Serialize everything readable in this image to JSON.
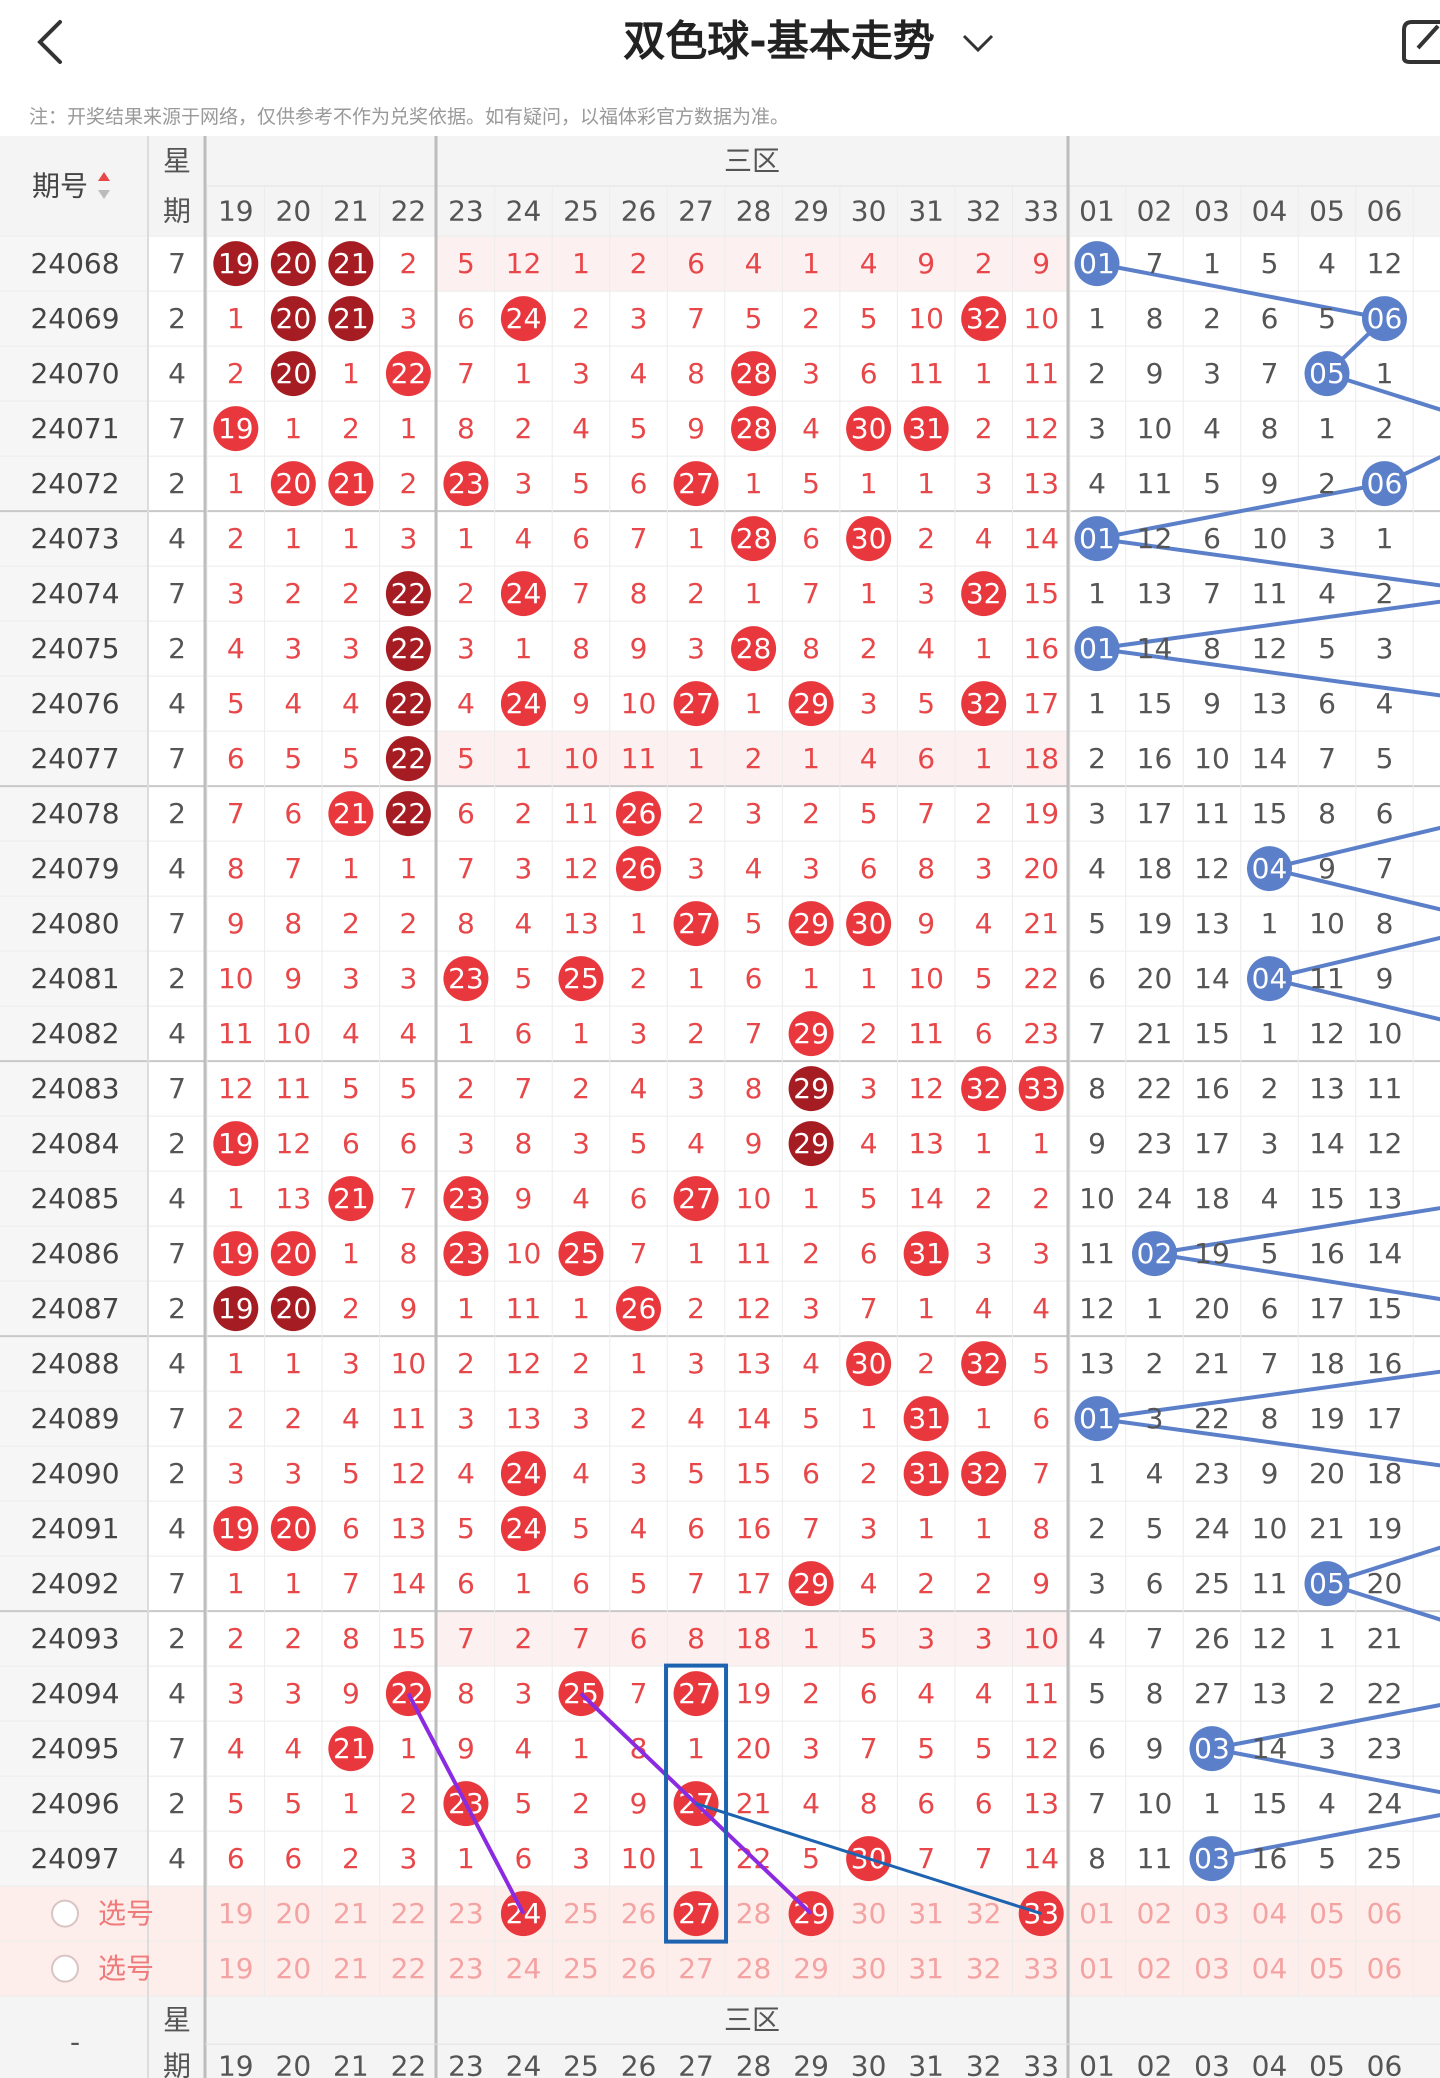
{
  "header": {
    "title": "双色球-基本走势",
    "note": "注：开奖结果来源于网络，仅供参考不作为兑奖依据。如有疑问，以福体彩官方数据为准。"
  },
  "table": {
    "issue_label": "期号",
    "week_label": [
      "星",
      "期"
    ],
    "zone_label": "三区",
    "red_columns": [
      "19",
      "20",
      "21",
      "22",
      "23",
      "24",
      "25",
      "26",
      "27",
      "28",
      "29",
      "30",
      "31",
      "32",
      "33"
    ],
    "blue_columns": [
      "01",
      "02",
      "03",
      "04",
      "05",
      "06"
    ],
    "rows": [
      {
        "issue": "24068",
        "week": "7",
        "red": [
          "19",
          "20",
          "21",
          "2",
          "5",
          "12",
          "1",
          "2",
          "6",
          "4",
          "1",
          "4",
          "9",
          "2",
          "9"
        ],
        "blue": [
          "01",
          "7",
          "1",
          "5",
          "4",
          "12"
        ],
        "dark": [
          "19",
          "20",
          "21"
        ]
      },
      {
        "issue": "24069",
        "week": "2",
        "red": [
          "1",
          "20",
          "21",
          "3",
          "6",
          "24",
          "2",
          "3",
          "7",
          "5",
          "2",
          "5",
          "10",
          "32",
          "10"
        ],
        "blue": [
          "1",
          "8",
          "2",
          "6",
          "5",
          "06"
        ],
        "dark": [
          "20",
          "21"
        ]
      },
      {
        "issue": "24070",
        "week": "4",
        "red": [
          "2",
          "20",
          "1",
          "22",
          "7",
          "1",
          "3",
          "4",
          "8",
          "28",
          "3",
          "6",
          "11",
          "1",
          "11"
        ],
        "blue": [
          "2",
          "9",
          "3",
          "7",
          "05",
          "1"
        ],
        "dark": [
          "20"
        ]
      },
      {
        "issue": "24071",
        "week": "7",
        "red": [
          "19",
          "1",
          "2",
          "1",
          "8",
          "2",
          "4",
          "5",
          "9",
          "28",
          "4",
          "30",
          "31",
          "2",
          "12"
        ],
        "blue": [
          "3",
          "10",
          "4",
          "8",
          "1",
          "2"
        ],
        "dark": []
      },
      {
        "issue": "24072",
        "week": "2",
        "red": [
          "1",
          "20",
          "21",
          "2",
          "23",
          "3",
          "5",
          "6",
          "27",
          "1",
          "5",
          "1",
          "1",
          "3",
          "13"
        ],
        "blue": [
          "4",
          "11",
          "5",
          "9",
          "2",
          "06"
        ],
        "dark": []
      },
      {
        "issue": "24073",
        "week": "4",
        "red": [
          "2",
          "1",
          "1",
          "3",
          "1",
          "4",
          "6",
          "7",
          "1",
          "28",
          "6",
          "30",
          "2",
          "4",
          "14"
        ],
        "blue": [
          "01",
          "12",
          "6",
          "10",
          "3",
          "1"
        ],
        "dark": []
      },
      {
        "issue": "24074",
        "week": "7",
        "red": [
          "3",
          "2",
          "2",
          "22",
          "2",
          "24",
          "7",
          "8",
          "2",
          "1",
          "7",
          "1",
          "3",
          "32",
          "15"
        ],
        "blue": [
          "1",
          "13",
          "7",
          "11",
          "4",
          "2"
        ],
        "dark": [
          "22"
        ]
      },
      {
        "issue": "24075",
        "week": "2",
        "red": [
          "4",
          "3",
          "3",
          "22",
          "3",
          "1",
          "8",
          "9",
          "3",
          "28",
          "8",
          "2",
          "4",
          "1",
          "16"
        ],
        "blue": [
          "01",
          "14",
          "8",
          "12",
          "5",
          "3"
        ],
        "dark": [
          "22"
        ]
      },
      {
        "issue": "24076",
        "week": "4",
        "red": [
          "5",
          "4",
          "4",
          "22",
          "4",
          "24",
          "9",
          "10",
          "27",
          "1",
          "29",
          "3",
          "5",
          "32",
          "17"
        ],
        "blue": [
          "1",
          "15",
          "9",
          "13",
          "6",
          "4"
        ],
        "dark": [
          "22"
        ]
      },
      {
        "issue": "24077",
        "week": "7",
        "red": [
          "6",
          "5",
          "5",
          "22",
          "5",
          "1",
          "10",
          "11",
          "1",
          "2",
          "1",
          "4",
          "6",
          "1",
          "18"
        ],
        "blue": [
          "2",
          "16",
          "10",
          "14",
          "7",
          "5"
        ],
        "dark": [
          "22"
        ]
      },
      {
        "issue": "24078",
        "week": "2",
        "red": [
          "7",
          "6",
          "21",
          "22",
          "6",
          "2",
          "11",
          "26",
          "2",
          "3",
          "2",
          "5",
          "7",
          "2",
          "19"
        ],
        "blue": [
          "3",
          "17",
          "11",
          "15",
          "8",
          "6"
        ],
        "dark": [
          "22"
        ]
      },
      {
        "issue": "24079",
        "week": "4",
        "red": [
          "8",
          "7",
          "1",
          "1",
          "7",
          "3",
          "12",
          "26",
          "3",
          "4",
          "3",
          "6",
          "8",
          "3",
          "20"
        ],
        "blue": [
          "4",
          "18",
          "12",
          "04",
          "9",
          "7"
        ],
        "dark": []
      },
      {
        "issue": "24080",
        "week": "7",
        "red": [
          "9",
          "8",
          "2",
          "2",
          "8",
          "4",
          "13",
          "1",
          "27",
          "5",
          "29",
          "30",
          "9",
          "4",
          "21"
        ],
        "blue": [
          "5",
          "19",
          "13",
          "1",
          "10",
          "8"
        ],
        "dark": []
      },
      {
        "issue": "24081",
        "week": "2",
        "red": [
          "10",
          "9",
          "3",
          "3",
          "23",
          "5",
          "25",
          "2",
          "1",
          "6",
          "1",
          "1",
          "10",
          "5",
          "22"
        ],
        "blue": [
          "6",
          "20",
          "14",
          "04",
          "11",
          "9"
        ],
        "dark": []
      },
      {
        "issue": "24082",
        "week": "4",
        "red": [
          "11",
          "10",
          "4",
          "4",
          "1",
          "6",
          "1",
          "3",
          "2",
          "7",
          "29",
          "2",
          "11",
          "6",
          "23"
        ],
        "blue": [
          "7",
          "21",
          "15",
          "1",
          "12",
          "10"
        ],
        "dark": []
      },
      {
        "issue": "24083",
        "week": "7",
        "red": [
          "12",
          "11",
          "5",
          "5",
          "2",
          "7",
          "2",
          "4",
          "3",
          "8",
          "29",
          "3",
          "12",
          "32",
          "33"
        ],
        "blue": [
          "8",
          "22",
          "16",
          "2",
          "13",
          "11"
        ],
        "dark": [
          "29"
        ]
      },
      {
        "issue": "24084",
        "week": "2",
        "red": [
          "19",
          "12",
          "6",
          "6",
          "3",
          "8",
          "3",
          "5",
          "4",
          "9",
          "29",
          "4",
          "13",
          "1",
          "1"
        ],
        "blue": [
          "9",
          "23",
          "17",
          "3",
          "14",
          "12"
        ],
        "dark": [
          "29"
        ]
      },
      {
        "issue": "24085",
        "week": "4",
        "red": [
          "1",
          "13",
          "21",
          "7",
          "23",
          "9",
          "4",
          "6",
          "27",
          "10",
          "1",
          "5",
          "14",
          "2",
          "2"
        ],
        "blue": [
          "10",
          "24",
          "18",
          "4",
          "15",
          "13"
        ],
        "dark": []
      },
      {
        "issue": "24086",
        "week": "7",
        "red": [
          "19",
          "20",
          "1",
          "8",
          "23",
          "10",
          "25",
          "7",
          "1",
          "11",
          "2",
          "6",
          "31",
          "3",
          "3"
        ],
        "blue": [
          "11",
          "02",
          "19",
          "5",
          "16",
          "14"
        ],
        "dark": []
      },
      {
        "issue": "24087",
        "week": "2",
        "red": [
          "19",
          "20",
          "2",
          "9",
          "1",
          "11",
          "1",
          "26",
          "2",
          "12",
          "3",
          "7",
          "1",
          "4",
          "4"
        ],
        "blue": [
          "12",
          "1",
          "20",
          "6",
          "17",
          "15"
        ],
        "dark": [
          "19",
          "20"
        ]
      },
      {
        "issue": "24088",
        "week": "4",
        "red": [
          "1",
          "1",
          "3",
          "10",
          "2",
          "12",
          "2",
          "1",
          "3",
          "13",
          "4",
          "30",
          "2",
          "32",
          "5"
        ],
        "blue": [
          "13",
          "2",
          "21",
          "7",
          "18",
          "16"
        ],
        "dark": []
      },
      {
        "issue": "24089",
        "week": "7",
        "red": [
          "2",
          "2",
          "4",
          "11",
          "3",
          "13",
          "3",
          "2",
          "4",
          "14",
          "5",
          "1",
          "31",
          "1",
          "6"
        ],
        "blue": [
          "01",
          "3",
          "22",
          "8",
          "19",
          "17"
        ],
        "dark": []
      },
      {
        "issue": "24090",
        "week": "2",
        "red": [
          "3",
          "3",
          "5",
          "12",
          "4",
          "24",
          "4",
          "3",
          "5",
          "15",
          "6",
          "2",
          "31",
          "32",
          "7"
        ],
        "blue": [
          "1",
          "4",
          "23",
          "9",
          "20",
          "18"
        ],
        "dark": []
      },
      {
        "issue": "24091",
        "week": "4",
        "red": [
          "19",
          "20",
          "6",
          "13",
          "5",
          "24",
          "5",
          "4",
          "6",
          "16",
          "7",
          "3",
          "1",
          "1",
          "8"
        ],
        "blue": [
          "2",
          "5",
          "24",
          "10",
          "21",
          "19"
        ],
        "dark": []
      },
      {
        "issue": "24092",
        "week": "7",
        "red": [
          "1",
          "1",
          "7",
          "14",
          "6",
          "1",
          "6",
          "5",
          "7",
          "17",
          "29",
          "4",
          "2",
          "2",
          "9"
        ],
        "blue": [
          "3",
          "6",
          "25",
          "11",
          "05",
          "20"
        ],
        "dark": []
      },
      {
        "issue": "24093",
        "week": "2",
        "red": [
          "2",
          "2",
          "8",
          "15",
          "7",
          "2",
          "7",
          "6",
          "8",
          "18",
          "1",
          "5",
          "3",
          "3",
          "10"
        ],
        "blue": [
          "4",
          "7",
          "26",
          "12",
          "1",
          "21"
        ],
        "dark": []
      },
      {
        "issue": "24094",
        "week": "4",
        "red": [
          "3",
          "3",
          "9",
          "22",
          "8",
          "3",
          "25",
          "7",
          "27",
          "19",
          "2",
          "6",
          "4",
          "4",
          "11"
        ],
        "blue": [
          "5",
          "8",
          "27",
          "13",
          "2",
          "22"
        ],
        "dark": []
      },
      {
        "issue": "24095",
        "week": "7",
        "red": [
          "4",
          "4",
          "21",
          "1",
          "9",
          "4",
          "1",
          "8",
          "1",
          "20",
          "3",
          "7",
          "5",
          "5",
          "12"
        ],
        "blue": [
          "6",
          "9",
          "03",
          "14",
          "3",
          "23"
        ],
        "dark": []
      },
      {
        "issue": "24096",
        "week": "2",
        "red": [
          "5",
          "5",
          "1",
          "2",
          "23",
          "5",
          "2",
          "9",
          "27",
          "21",
          "4",
          "8",
          "6",
          "6",
          "13"
        ],
        "blue": [
          "7",
          "10",
          "1",
          "15",
          "4",
          "24"
        ],
        "dark": []
      },
      {
        "issue": "24097",
        "week": "4",
        "red": [
          "6",
          "6",
          "2",
          "3",
          "1",
          "6",
          "3",
          "10",
          "1",
          "22",
          "5",
          "30",
          "7",
          "7",
          "14"
        ],
        "blue": [
          "8",
          "11",
          "03",
          "16",
          "5",
          "25"
        ],
        "dark": []
      }
    ],
    "select_rows": [
      {
        "label": "选号",
        "picked": [
          "24",
          "27",
          "29",
          "33"
        ]
      },
      {
        "label": "选号",
        "picked": []
      }
    ]
  },
  "footer": {
    "issue_label": "-",
    "week_label": [
      "星",
      "期"
    ],
    "zone_label": "三区"
  }
}
